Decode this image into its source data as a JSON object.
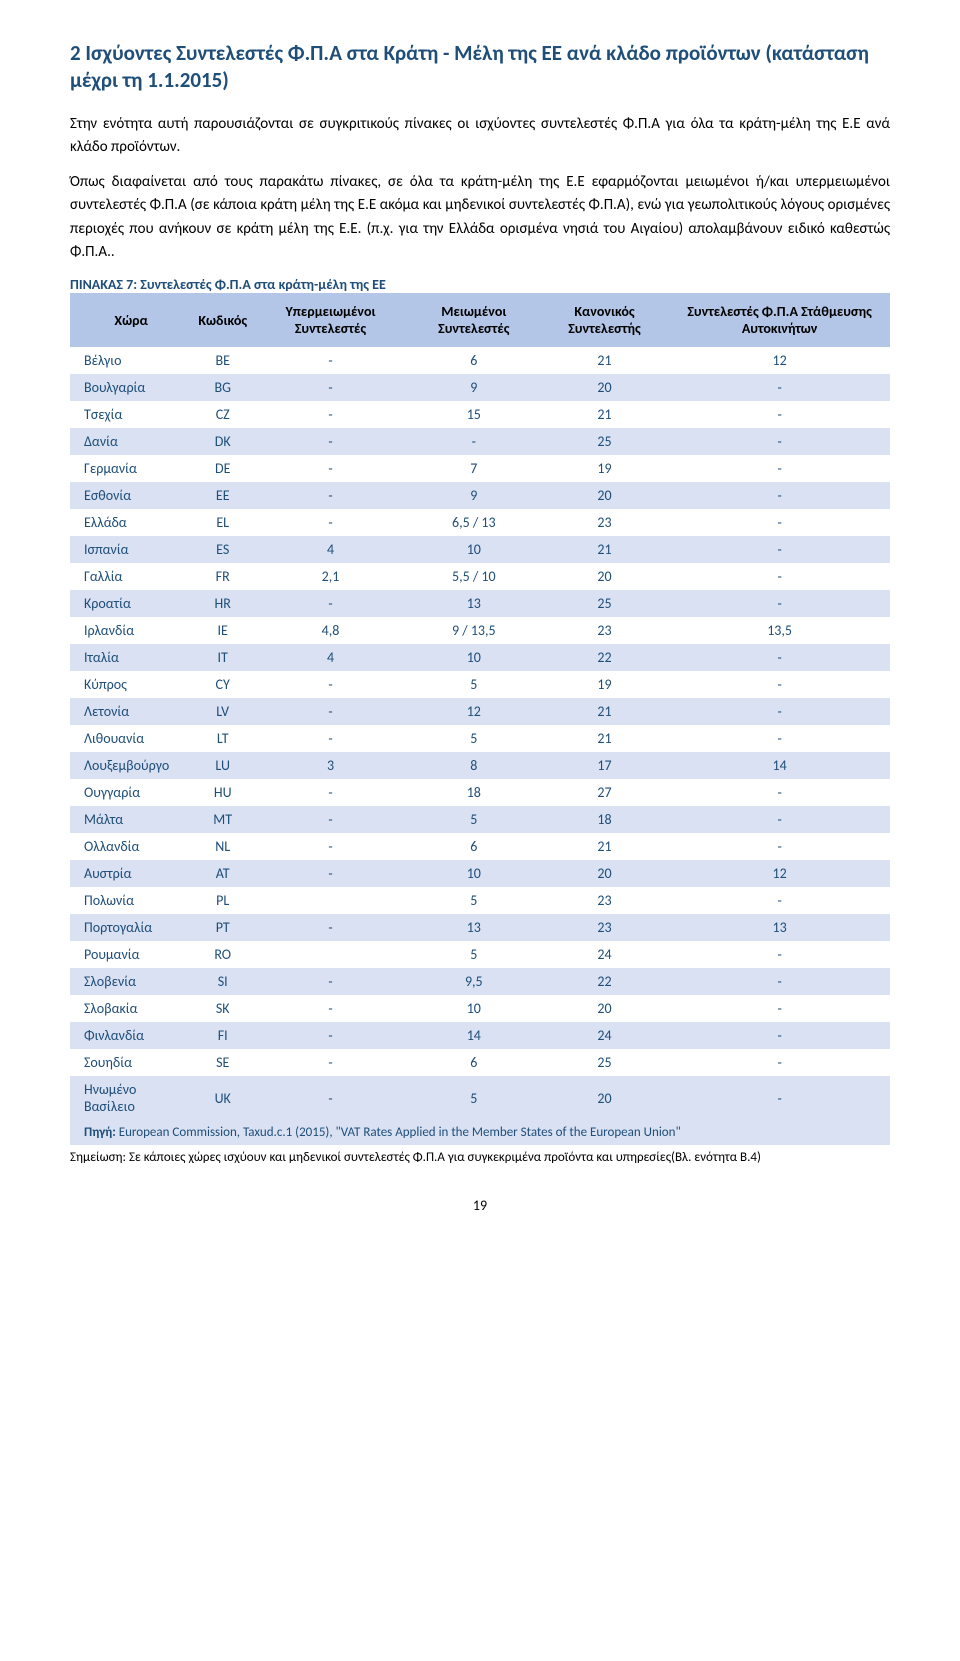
{
  "heading": "2  Ισχύοντες Συντελεστές Φ.Π.Α στα Κράτη - Μέλη της ΕΕ ανά κλάδο προϊόντων (κατάσταση μέχρι τη 1.1.2015)",
  "para1": "Στην ενότητα αυτή παρουσιάζονται σε συγκριτικούς πίνακες οι ισχύοντες συντελεστές Φ.Π.Α για όλα τα κράτη-μέλη της Ε.Ε ανά κλάδο προϊόντων.",
  "para2": "Όπως διαφαίνεται από τους παρακάτω πίνακες, σε όλα τα κράτη-μέλη της Ε.Ε εφαρμόζονται μειωμένοι ή/και υπερμειωμένοι συντελεστές Φ.Π.Α (σε κάποια κράτη μέλη της Ε.Ε ακόμα και μηδενικοί συντελεστές Φ.Π.Α), ενώ για γεωπολιτικούς λόγους ορισμένες περιοχές που ανήκουν σε κράτη μέλη της Ε.Ε. (π.χ. για την Ελλάδα ορισμένα νησιά του Αιγαίου) απολαμβάνουν ειδικό καθεστώς Φ.Π.Α..",
  "tableTitle": "ΠΙΝΑΚΑΣ 7: Συντελεστές Φ.Π.Α στα κράτη-μέλη της ΕΕ",
  "columns": {
    "c0": "Χώρα",
    "c1": "Κωδικός",
    "c2": "Υπερμειωμένοι Συντελεστές",
    "c3": "Μειωμένοι Συντελεστές",
    "c4": "Κανονικός Συντελεστής",
    "c5": "Συντελεστές Φ.Π.Α Στάθμευσης Αυτοκινήτων"
  },
  "rows": [
    {
      "c0": "Βέλγιο",
      "c1": "BE",
      "c2": "-",
      "c3": "6",
      "c4": "21",
      "c5": "12"
    },
    {
      "c0": "Βουλγαρία",
      "c1": "BG",
      "c2": "-",
      "c3": "9",
      "c4": "20",
      "c5": "-"
    },
    {
      "c0": "Τσεχία",
      "c1": "CZ",
      "c2": "-",
      "c3": "15",
      "c4": "21",
      "c5": "-"
    },
    {
      "c0": "Δανία",
      "c1": "DK",
      "c2": "-",
      "c3": "-",
      "c4": "25",
      "c5": "-"
    },
    {
      "c0": "Γερμανία",
      "c1": "DE",
      "c2": "-",
      "c3": "7",
      "c4": "19",
      "c5": "-"
    },
    {
      "c0": "Εσθονία",
      "c1": "EE",
      "c2": "-",
      "c3": "9",
      "c4": "20",
      "c5": "-"
    },
    {
      "c0": "Ελλάδα",
      "c1": "EL",
      "c2": "-",
      "c3": "6,5 / 13",
      "c4": "23",
      "c5": "-"
    },
    {
      "c0": "Ισπανία",
      "c1": "ES",
      "c2": "4",
      "c3": "10",
      "c4": "21",
      "c5": "-"
    },
    {
      "c0": "Γαλλία",
      "c1": "FR",
      "c2": "2,1",
      "c3": "5,5 / 10",
      "c4": "20",
      "c5": "-"
    },
    {
      "c0": "Κροατία",
      "c1": "HR",
      "c2": "-",
      "c3": "13",
      "c4": "25",
      "c5": "-"
    },
    {
      "c0": "Ιρλανδία",
      "c1": "IE",
      "c2": "4,8",
      "c3": "9 / 13,5",
      "c4": "23",
      "c5": "13,5"
    },
    {
      "c0": "Ιταλία",
      "c1": "IT",
      "c2": "4",
      "c3": "10",
      "c4": "22",
      "c5": "-"
    },
    {
      "c0": "Κύπρος",
      "c1": "CY",
      "c2": "-",
      "c3": "5",
      "c4": "19",
      "c5": "-"
    },
    {
      "c0": "Λετονία",
      "c1": "LV",
      "c2": "-",
      "c3": "12",
      "c4": "21",
      "c5": "-"
    },
    {
      "c0": "Λιθουανία",
      "c1": "LT",
      "c2": "-",
      "c3": "5",
      "c4": "21",
      "c5": "-"
    },
    {
      "c0": "Λουξεμβούργο",
      "c1": "LU",
      "c2": "3",
      "c3": "8",
      "c4": "17",
      "c5": "14"
    },
    {
      "c0": "Ουγγαρία",
      "c1": "HU",
      "c2": "-",
      "c3": "18",
      "c4": "27",
      "c5": "-"
    },
    {
      "c0": "Μάλτα",
      "c1": "MT",
      "c2": "-",
      "c3": "5",
      "c4": "18",
      "c5": "-"
    },
    {
      "c0": "Ολλανδία",
      "c1": "NL",
      "c2": "-",
      "c3": "6",
      "c4": "21",
      "c5": "-"
    },
    {
      "c0": "Αυστρία",
      "c1": "AT",
      "c2": "-",
      "c3": "10",
      "c4": "20",
      "c5": "12"
    },
    {
      "c0": "Πολωνία",
      "c1": "PL",
      "c2": "",
      "c3": "5",
      "c4": "23",
      "c5": "-"
    },
    {
      "c0": "Πορτογαλία",
      "c1": "PT",
      "c2": "-",
      "c3": "13",
      "c4": "23",
      "c5": "13"
    },
    {
      "c0": "Ρουμανία",
      "c1": "RO",
      "c2": "",
      "c3": "5",
      "c4": "24",
      "c5": "-"
    },
    {
      "c0": "Σλοβενία",
      "c1": "SI",
      "c2": "-",
      "c3": "9,5",
      "c4": "22",
      "c5": "-"
    },
    {
      "c0": "Σλοβακία",
      "c1": "SK",
      "c2": "-",
      "c3": "10",
      "c4": "20",
      "c5": "-"
    },
    {
      "c0": "Φινλανδία",
      "c1": "FI",
      "c2": "-",
      "c3": "14",
      "c4": "24",
      "c5": "-"
    },
    {
      "c0": "Σουηδία",
      "c1": "SE",
      "c2": "-",
      "c3": "6",
      "c4": "25",
      "c5": "-"
    },
    {
      "c0": "Ηνωμένο Βασίλειο",
      "c1": "UK",
      "c2": "-",
      "c3": "5",
      "c4": "20",
      "c5": "-"
    }
  ],
  "sourcePrefix": "Πηγή: ",
  "sourceText": "European Commission, Taxud.c.1 (2015), \"VAT Rates Applied in the Member States of the  European Union\"",
  "footnote": "Σημείωση: Σε κάποιες χώρες ισχύουν και μηδενικοί συντελεστές Φ.Π.Α για συγκεκριμένα προϊόντα και υπηρεσίες(Βλ. ενότητα Β.4)",
  "pageNum": "19",
  "style": {
    "heading_color": "#1f4e79",
    "header_bg": "#b4c6e7",
    "stripe_even": "#d9e1f2",
    "stripe_odd": "#ffffff",
    "cell_text_color": "#1f4e79"
  }
}
